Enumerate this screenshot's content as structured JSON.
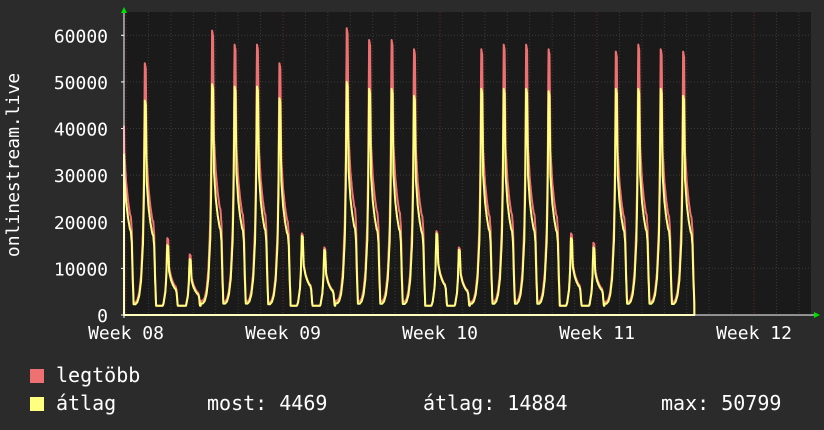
{
  "chart_data": {
    "type": "area",
    "ylabel": "onlinestream.live",
    "ylim": [
      0,
      65000
    ],
    "yticks": [
      0,
      10000,
      20000,
      30000,
      40000,
      50000,
      60000
    ],
    "xticks": [
      "Week 08",
      "Week 09",
      "Week 10",
      "Week 11",
      "Week 12"
    ],
    "days_per_tick": 7,
    "grid": true,
    "series": [
      {
        "name": "legtöbb",
        "color": "#ef7070",
        "daily_peak": [
          57000,
          54000,
          16500,
          13000,
          61000,
          58000,
          58000,
          54000,
          17500,
          14500,
          61500,
          59000,
          59000,
          57000,
          18000,
          14500,
          57000,
          58000,
          58000,
          57000,
          17500,
          15500,
          56500,
          58000,
          57000,
          56500
        ]
      },
      {
        "name": "átlag",
        "color": "#ffff80",
        "daily_peak": [
          48500,
          46000,
          15000,
          12000,
          49500,
          49000,
          49000,
          46500,
          17000,
          14000,
          50000,
          48500,
          48500,
          47000,
          17500,
          14000,
          48500,
          48500,
          48500,
          48000,
          16500,
          14500,
          48500,
          48500,
          48500,
          47000
        ]
      }
    ],
    "legend": {
      "max_label": "legtöbb",
      "avg_label": "átlag",
      "stats": [
        {
          "label": "most:",
          "value": "4469"
        },
        {
          "label": "átlag:",
          "value": "14884"
        },
        {
          "label": "max:",
          "value": "50799"
        }
      ]
    },
    "colors": {
      "background": "#2b2b2b",
      "plot": "#1a1a1a",
      "grid": "#3a3a3a",
      "gridMinor": "#6b2626",
      "axis": "#ffffff",
      "arrow": "#00e000"
    }
  }
}
